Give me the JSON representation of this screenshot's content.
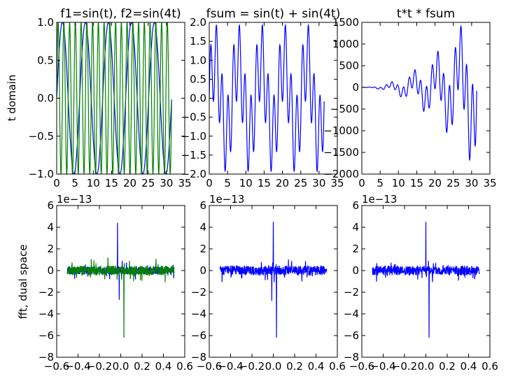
{
  "figure": {
    "row_labels": [
      "t domain",
      "fft, dual space"
    ]
  },
  "colors": {
    "blue": "#0000ff",
    "green": "#008000",
    "axis": "#000000",
    "background": "#ffffff"
  },
  "chart_data": [
    {
      "type": "line",
      "title": "f1=sin(t), f2=sin(4t)",
      "xlabel": "",
      "ylabel": "t domain",
      "xlim": [
        0,
        35
      ],
      "ylim": [
        -1.0,
        1.0
      ],
      "xticks": [
        "0",
        "5",
        "10",
        "15",
        "20",
        "25",
        "30",
        "35"
      ],
      "yticks": [
        "−1.0",
        "−0.5",
        "0.0",
        "0.5",
        "1.0"
      ],
      "offset_label": "",
      "series": [
        {
          "color": "#0000ff",
          "formula": "sin(t)",
          "x_range": [
            0,
            31.4
          ]
        },
        {
          "color": "#008000",
          "formula": "sin(4t)",
          "x_range": [
            0,
            31.4
          ]
        }
      ]
    },
    {
      "type": "line",
      "title": "fsum = sin(t) + sin(4t)",
      "xlabel": "",
      "ylabel": "",
      "xlim": [
        0,
        35
      ],
      "ylim": [
        -2.0,
        2.0
      ],
      "xticks": [
        "0",
        "5",
        "10",
        "15",
        "20",
        "25",
        "30",
        "35"
      ],
      "yticks": [
        "−2.0",
        "−1.5",
        "−1.0",
        "−0.5",
        "0.0",
        "0.5",
        "1.0",
        "1.5",
        "2.0"
      ],
      "offset_label": "",
      "series": [
        {
          "color": "#0000ff",
          "formula": "sin(t) + sin(4t)",
          "x_range": [
            0,
            31.4
          ]
        }
      ]
    },
    {
      "type": "line",
      "title": "t*t * fsum",
      "xlabel": "",
      "ylabel": "",
      "xlim": [
        0,
        35
      ],
      "ylim": [
        -2000,
        1500
      ],
      "xticks": [
        "0",
        "5",
        "10",
        "15",
        "20",
        "25",
        "30",
        "35"
      ],
      "yticks": [
        "−2000",
        "−1500",
        "−1000",
        "−500",
        "0",
        "500",
        "1000",
        "1500"
      ],
      "offset_label": "",
      "series": [
        {
          "color": "#0000ff",
          "formula": "t*t*(sin(t) + sin(4t))",
          "x_range": [
            0,
            31.4
          ]
        }
      ]
    },
    {
      "type": "line",
      "title": "",
      "xlabel": "",
      "ylabel": "fft, dual space",
      "xlim": [
        -0.6,
        0.6
      ],
      "ylim": [
        -8,
        6
      ],
      "xticks": [
        "−0.6",
        "−0.4",
        "−0.2",
        "0.0",
        "0.2",
        "0.4",
        "0.6"
      ],
      "yticks": [
        "−8",
        "−6",
        "−4",
        "−2",
        "0",
        "2",
        "4",
        "6"
      ],
      "offset_label": "1e−13",
      "series": [
        {
          "color": "#0000ff",
          "x_range": [
            -0.5,
            0.5
          ],
          "noise": 0.35,
          "spikes": [
            [
              -0.03,
              4.4
            ],
            [
              -0.015,
              -2.7
            ],
            [
              0.015,
              0.9
            ]
          ]
        },
        {
          "color": "#008000",
          "x_range": [
            -0.5,
            0.5
          ],
          "noise": 0.45,
          "spikes": [
            [
              0.03,
              -6.2
            ],
            [
              -0.12,
              1.2
            ],
            [
              0.12,
              -1.0
            ]
          ]
        }
      ]
    },
    {
      "type": "line",
      "title": "",
      "xlabel": "",
      "ylabel": "",
      "xlim": [
        -0.6,
        0.6
      ],
      "ylim": [
        -8,
        6
      ],
      "xticks": [
        "−0.6",
        "−0.4",
        "−0.2",
        "0.0",
        "0.2",
        "0.4",
        "0.6"
      ],
      "yticks": [
        "−8",
        "−6",
        "−4",
        "−2",
        "0",
        "2",
        "4",
        "6"
      ],
      "offset_label": "1e−13",
      "series": [
        {
          "color": "#0000ff",
          "x_range": [
            -0.5,
            0.5
          ],
          "noise": 0.45,
          "spikes": [
            [
              0.0,
              4.5
            ],
            [
              -0.015,
              -2.8
            ],
            [
              0.03,
              -6.2
            ]
          ]
        }
      ]
    },
    {
      "type": "line",
      "title": "",
      "xlabel": "",
      "ylabel": "",
      "xlim": [
        -0.6,
        0.6
      ],
      "ylim": [
        -8,
        6
      ],
      "xticks": [
        "−0.6",
        "−0.4",
        "−0.2",
        "0.0",
        "0.2",
        "0.4",
        "0.6"
      ],
      "yticks": [
        "−8",
        "−6",
        "−4",
        "−2",
        "0",
        "2",
        "4",
        "6"
      ],
      "offset_label": "1e−13",
      "series": [
        {
          "color": "#0000ff",
          "x_range": [
            -0.5,
            0.5
          ],
          "noise": 0.45,
          "spikes": [
            [
              0.0,
              4.5
            ],
            [
              0.03,
              -6.2
            ]
          ]
        }
      ]
    }
  ]
}
